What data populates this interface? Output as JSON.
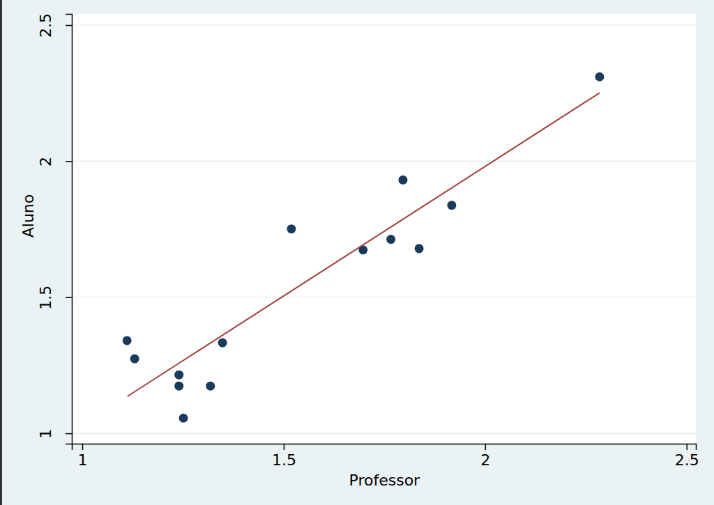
{
  "chart_data": {
    "type": "scatter",
    "x_label": "Professor",
    "y_label": "Aluno",
    "xlim": [
      0.974,
      2.523
    ],
    "ylim": [
      0.962,
      2.541
    ],
    "xticks": [
      1,
      1.5,
      2,
      2.5
    ],
    "yticks": [
      1,
      1.5,
      2,
      2.5
    ],
    "grid": true,
    "series": [
      {
        "type": "scatter",
        "color": "#1a3a5c",
        "marker": "circle",
        "x": [
          1.111,
          1.13,
          1.24,
          1.24,
          1.251,
          1.318,
          1.348,
          1.519,
          1.697,
          1.766,
          1.796,
          1.836,
          1.917,
          2.284
        ],
        "values": [
          1.341,
          1.274,
          1.215,
          1.174,
          1.056,
          1.174,
          1.333,
          1.751,
          1.674,
          1.713,
          1.931,
          1.679,
          1.838,
          2.31
        ]
      },
      {
        "type": "line",
        "color": "#a0413c",
        "line_style": "solid",
        "x": [
          1.112,
          2.284
        ],
        "values": [
          1.136,
          2.251
        ]
      }
    ]
  }
}
